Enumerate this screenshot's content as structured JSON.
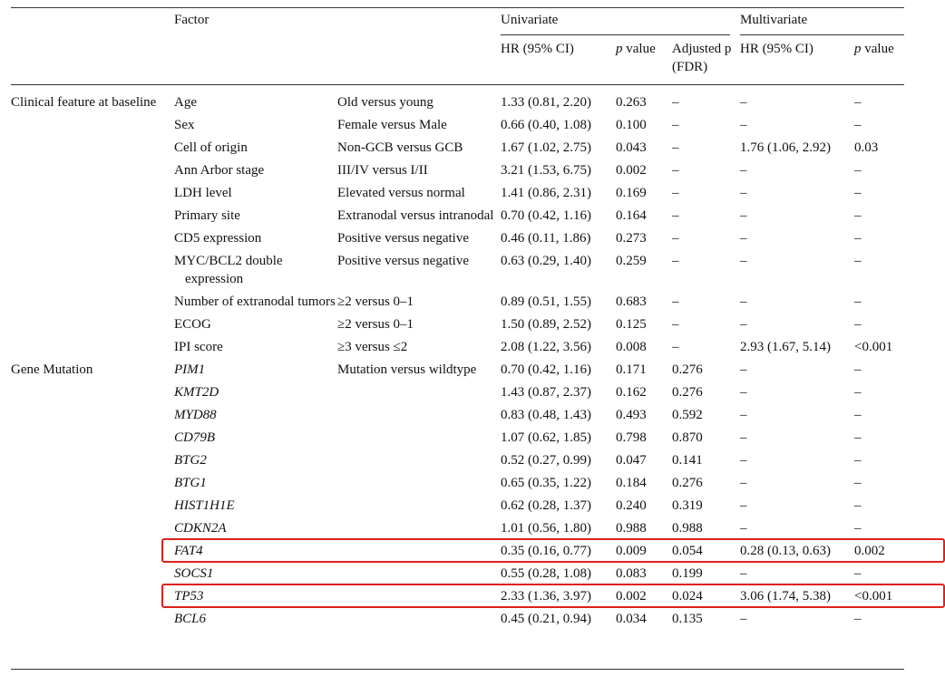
{
  "header": {
    "factor": "Factor",
    "univariate": "Univariate",
    "multivariate": "Multivariate",
    "hr": "HR (95% CI)",
    "p": "p value",
    "adjusted": "Adjusted p (FDR)",
    "multi_hr": "HR (95% CI)",
    "multi_p": "p value"
  },
  "groups": [
    {
      "label": "Clinical feature at baseline",
      "rows": [
        [
          "Age",
          "Old versus young",
          "1.33 (0.81, 2.20)",
          "0.263",
          "–",
          "–",
          "–"
        ],
        [
          "Sex",
          "Female versus Male",
          "0.66 (0.40, 1.08)",
          "0.100",
          "–",
          "–",
          "–"
        ],
        [
          "Cell of origin",
          "Non-GCB versus GCB",
          "1.67 (1.02, 2.75)",
          "0.043",
          "–",
          "1.76 (1.06, 2.92)",
          "0.03"
        ],
        [
          "Ann Arbor stage",
          "III/IV versus I/II",
          "3.21 (1.53, 6.75)",
          "0.002",
          "–",
          "–",
          "–"
        ],
        [
          "LDH level",
          "Elevated versus normal",
          "1.41 (0.86, 2.31)",
          "0.169",
          "–",
          "–",
          "–"
        ],
        [
          "Primary site",
          "Extranodal versus intranodal",
          "0.70 (0.42, 1.16)",
          "0.164",
          "–",
          "–",
          "–"
        ],
        [
          "CD5 expression",
          "Positive versus negative",
          "0.46 (0.11, 1.86)",
          "0.273",
          "–",
          "–",
          "–"
        ],
        [
          "MYC/BCL2 double expression",
          "Positive versus negative",
          "0.63 (0.29, 1.40)",
          "0.259",
          "–",
          "–",
          "–"
        ],
        [
          "Number of extranodal tumors",
          "≥2 versus 0–1",
          "0.89 (0.51, 1.55)",
          "0.683",
          "–",
          "–",
          "–"
        ],
        [
          "ECOG",
          "≥2 versus 0–1",
          "1.50 (0.89, 2.52)",
          "0.125",
          "–",
          "–",
          "–"
        ],
        [
          "IPI score",
          "≥3 versus ≤2",
          "2.08 (1.22, 3.56)",
          "0.008",
          "–",
          "2.93 (1.67, 5.14)",
          "<0.001"
        ]
      ]
    },
    {
      "label": "Gene Mutation",
      "comparison": "Mutation versus wildtype",
      "rows": [
        [
          "PIM1",
          "",
          "0.70 (0.42, 1.16)",
          "0.171",
          "0.276",
          "–",
          "–"
        ],
        [
          "KMT2D",
          "",
          "1.43 (0.87, 2.37)",
          "0.162",
          "0.276",
          "–",
          "–"
        ],
        [
          "MYD88",
          "",
          "0.83 (0.48, 1.43)",
          "0.493",
          "0.592",
          "–",
          "–"
        ],
        [
          "CD79B",
          "",
          "1.07 (0.62, 1.85)",
          "0.798",
          "0.870",
          "–",
          "–"
        ],
        [
          "BTG2",
          "",
          "0.52 (0.27, 0.99)",
          "0.047",
          "0.141",
          "–",
          "–"
        ],
        [
          "BTG1",
          "",
          "0.65 (0.35, 1.22)",
          "0.184",
          "0.276",
          "–",
          "–"
        ],
        [
          "HIST1H1E",
          "",
          "0.62 (0.28, 1.37)",
          "0.240",
          "0.319",
          "–",
          "–"
        ],
        [
          "CDKN2A",
          "",
          "1.01 (0.56, 1.80)",
          "0.988",
          "0.988",
          "–",
          "–"
        ],
        [
          "FAT4",
          "",
          "0.35 (0.16, 0.77)",
          "0.009",
          "0.054",
          "0.28 (0.13, 0.63)",
          "0.002"
        ],
        [
          "SOCS1",
          "",
          "0.55 (0.28, 1.08)",
          "0.083",
          "0.199",
          "–",
          "–"
        ],
        [
          "TP53",
          "",
          "2.33 (1.36, 3.97)",
          "0.002",
          "0.024",
          "3.06 (1.74, 5.38)",
          "<0.001"
        ],
        [
          "BCL6",
          "",
          "0.45 (0.21, 0.94)",
          "0.034",
          "0.135",
          "–",
          "–"
        ]
      ]
    }
  ],
  "highlighted": [
    "FAT4",
    "TP53"
  ]
}
